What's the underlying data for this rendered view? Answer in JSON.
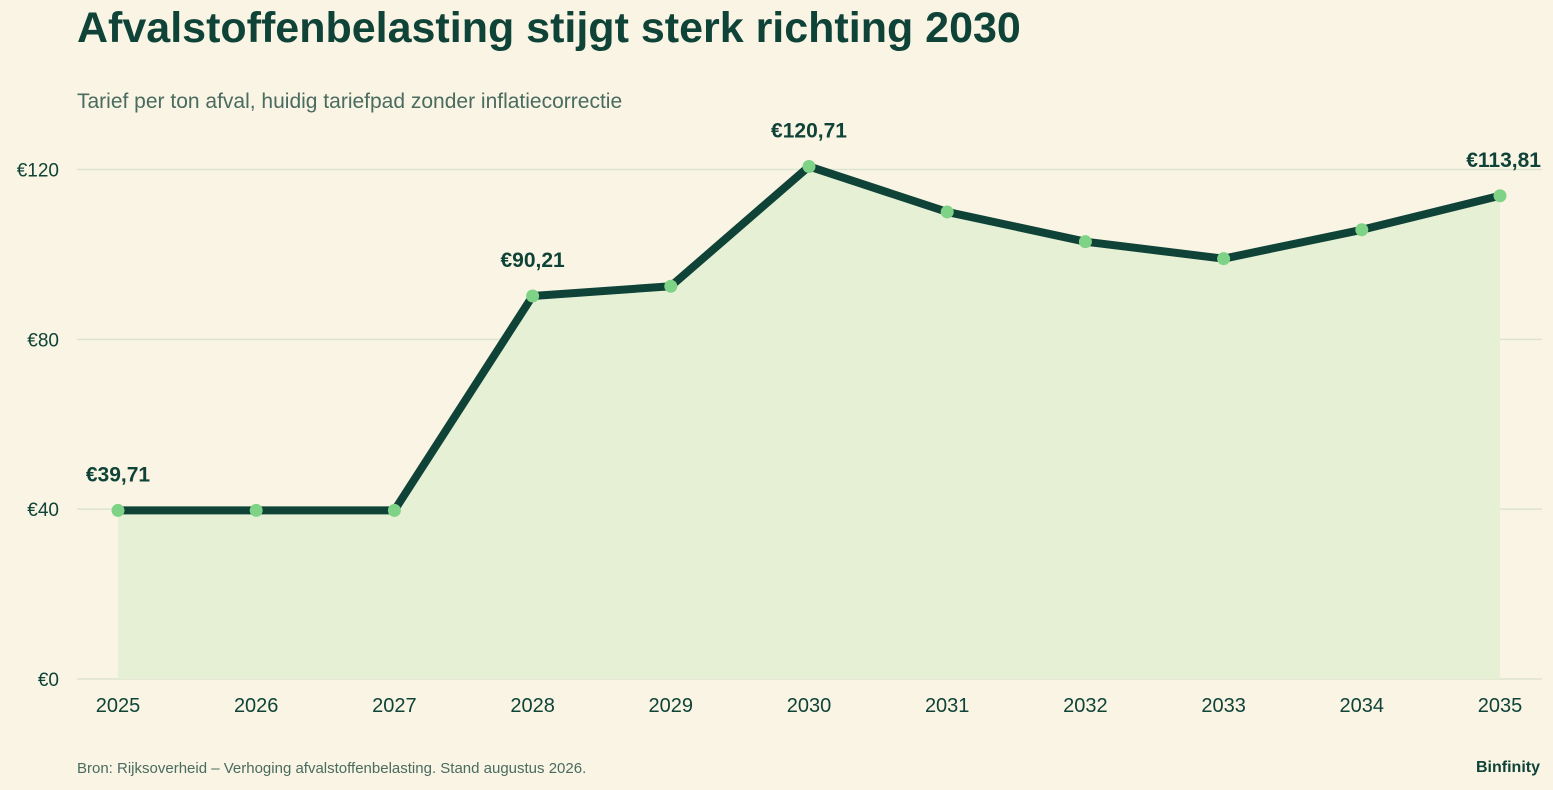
{
  "header": {
    "title": "Afvalstoffenbelasting stijgt sterk richting 2030",
    "subtitle": "Tarief per ton afval, huidig tariefpad zonder inflatiecorrectie"
  },
  "footer": {
    "source": "Bron: Rijksoverheid – Verhoging afvalstoffenbelasting. Stand augustus 2026.",
    "brand": "Binfinity"
  },
  "colors": {
    "background": "#f9f4e3",
    "line": "#0f4338",
    "marker": "#7fd387",
    "area": "#e5f0d5",
    "grid": "#dfe3d2",
    "text": "#0f4338"
  },
  "chart_data": {
    "type": "area",
    "title": "Afvalstoffenbelasting stijgt sterk richting 2030",
    "subtitle": "Tarief per ton afval, huidig tariefpad zonder inflatiecorrectie",
    "x": [
      2025,
      2026,
      2027,
      2028,
      2029,
      2030,
      2031,
      2032,
      2033,
      2034,
      2035
    ],
    "values": [
      39.71,
      39.71,
      39.71,
      90.21,
      92.5,
      120.71,
      110.0,
      103.0,
      99.0,
      105.8,
      113.81
    ],
    "ylim": [
      0,
      120
    ],
    "yticks": [
      0,
      40,
      80,
      120
    ],
    "ytick_labels": [
      "€0",
      "€40",
      "€80",
      "€120"
    ],
    "xtick_labels": [
      "2025",
      "2026",
      "2027",
      "2028",
      "2029",
      "2030",
      "2031",
      "2032",
      "2033",
      "2034",
      "2035"
    ],
    "annotations": [
      {
        "index": 0,
        "label": "€39,71"
      },
      {
        "index": 3,
        "label": "€90,21"
      },
      {
        "index": 5,
        "label": "€120,71"
      },
      {
        "index": 10,
        "label": "€113,81"
      }
    ],
    "grid": true,
    "legend": "none"
  }
}
